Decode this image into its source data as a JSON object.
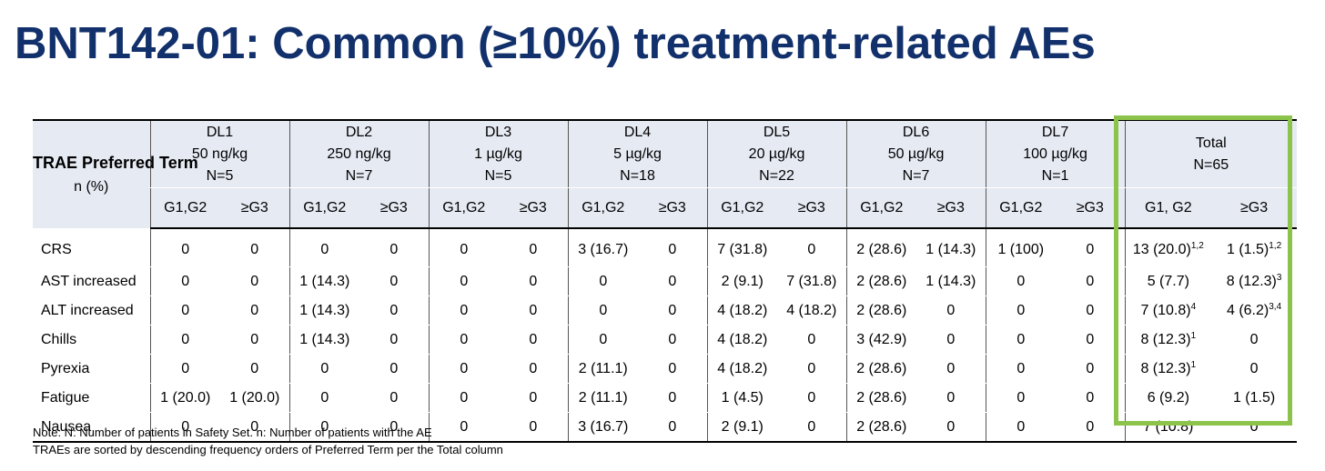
{
  "title": "BNT142-01: Common (≥10%) treatment-related AEs",
  "colors": {
    "title": "#12306b",
    "header_bg": "#e6eaf3",
    "highlight": "#8cc34a"
  },
  "table": {
    "row_header": {
      "title": "TRAE Preferred Term",
      "unit": "n (%)"
    },
    "groups": [
      {
        "name": "DL1",
        "dose": "50 ng/kg",
        "n": "N=5"
      },
      {
        "name": "DL2",
        "dose": "250 ng/kg",
        "n": "N=7"
      },
      {
        "name": "DL3",
        "dose": "1 µg/kg",
        "n": "N=5"
      },
      {
        "name": "DL4",
        "dose": "5 µg/kg",
        "n": "N=18"
      },
      {
        "name": "DL5",
        "dose": "20 µg/kg",
        "n": "N=22"
      },
      {
        "name": "DL6",
        "dose": "50 µg/kg",
        "n": "N=7"
      },
      {
        "name": "DL7",
        "dose": "100 µg/kg",
        "n": "N=1"
      }
    ],
    "total": {
      "name": "Total",
      "n": "N=65"
    },
    "sub_headers": [
      "G1,G2",
      "≥G3"
    ],
    "total_sub_headers": [
      "G1, G2",
      "≥G3"
    ],
    "rows": [
      {
        "term": "CRS",
        "cells": [
          "0",
          "0",
          "0",
          "0",
          "0",
          "0",
          "3 (16.7)",
          "0",
          "7 (31.8)",
          "0",
          "2 (28.6)",
          "1 (14.3)",
          "1 (100)",
          "0"
        ],
        "total": [
          {
            "v": "13 (20.0)",
            "s": "1,2"
          },
          {
            "v": "1 (1.5)",
            "s": "1,2"
          }
        ]
      },
      {
        "term": "AST increased",
        "cells": [
          "0",
          "0",
          "1 (14.3)",
          "0",
          "0",
          "0",
          "0",
          "0",
          "2 (9.1)",
          "7 (31.8)",
          "2 (28.6)",
          "1 (14.3)",
          "0",
          "0"
        ],
        "total": [
          {
            "v": "5 (7.7)",
            "s": ""
          },
          {
            "v": "8 (12.3)",
            "s": "3"
          }
        ]
      },
      {
        "term": "ALT increased",
        "cells": [
          "0",
          "0",
          "1 (14.3)",
          "0",
          "0",
          "0",
          "0",
          "0",
          "4 (18.2)",
          "4 (18.2)",
          "2 (28.6)",
          "0",
          "0",
          "0"
        ],
        "total": [
          {
            "v": "7 (10.8)",
            "s": "4"
          },
          {
            "v": "4 (6.2)",
            "s": "3,4"
          }
        ]
      },
      {
        "term": "Chills",
        "cells": [
          "0",
          "0",
          "1 (14.3)",
          "0",
          "0",
          "0",
          "0",
          "0",
          "4 (18.2)",
          "0",
          "3 (42.9)",
          "0",
          "0",
          "0"
        ],
        "total": [
          {
            "v": "8 (12.3)",
            "s": "1"
          },
          {
            "v": "0",
            "s": ""
          }
        ]
      },
      {
        "term": "Pyrexia",
        "cells": [
          "0",
          "0",
          "0",
          "0",
          "0",
          "0",
          "2 (11.1)",
          "0",
          "4 (18.2)",
          "0",
          "2 (28.6)",
          "0",
          "0",
          "0"
        ],
        "total": [
          {
            "v": "8 (12.3)",
            "s": "1"
          },
          {
            "v": "0",
            "s": ""
          }
        ]
      },
      {
        "term": "Fatigue",
        "cells": [
          "1 (20.0)",
          "1 (20.0)",
          "0",
          "0",
          "0",
          "0",
          "2 (11.1)",
          "0",
          "1 (4.5)",
          "0",
          "2 (28.6)",
          "0",
          "0",
          "0"
        ],
        "total": [
          {
            "v": "6 (9.2)",
            "s": ""
          },
          {
            "v": "1 (1.5)",
            "s": ""
          }
        ]
      },
      {
        "term": "Nausea",
        "cells": [
          "0",
          "0",
          "0",
          "0",
          "0",
          "0",
          "3 (16.7)",
          "0",
          "2 (9.1)",
          "0",
          "2 (28.6)",
          "0",
          "0",
          "0"
        ],
        "total": [
          {
            "v": "7 (10.8)",
            "s": ""
          },
          {
            "v": "0",
            "s": ""
          }
        ]
      }
    ]
  },
  "notes": [
    "Note: N: Number of patients in Safety Set. n: Number of patients with the AE",
    "TRAEs are sorted by descending frequency orders of Preferred Term per the Total column"
  ]
}
